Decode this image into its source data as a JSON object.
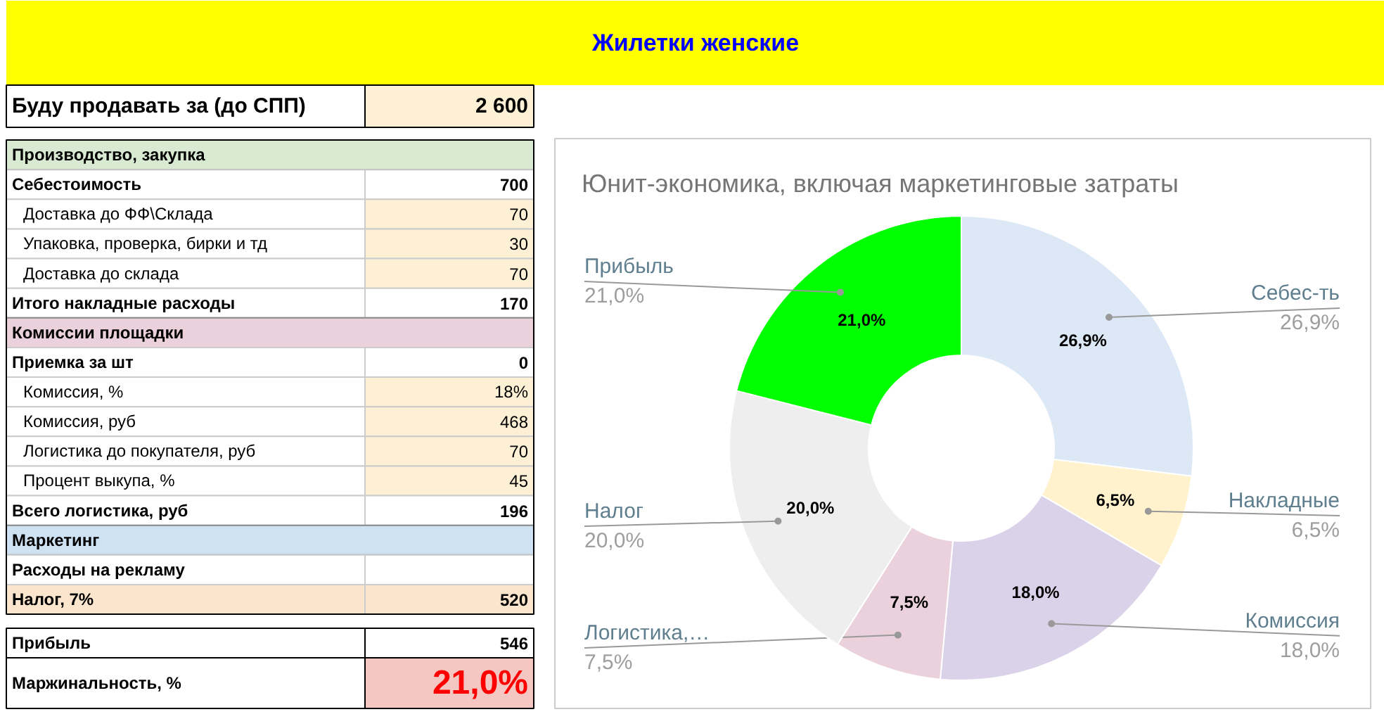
{
  "chart_data": [
    {
      "type": "other",
      "title": "Жилетки женские",
      "annotations": [
        "Буду продавать за (до СПП)",
        "2 600",
        "Производство, закупка",
        null,
        "Себестоимость",
        "700",
        "Доставка до ФФ\\Склада",
        "70",
        "Упаковка, проверка, бирки и тд",
        "30",
        "Доставка до склада",
        "70",
        "Итого накладные расходы",
        "170",
        "Комиссии площадки",
        null,
        "Приемка за шт",
        "0",
        "Комиссия, %",
        "18%",
        "Комиссия, руб",
        "468",
        "Логистика до покупателя, руб",
        "70",
        "Процент выкупа, %",
        "45",
        "Всего логистика, руб",
        "196",
        "Маркетинг",
        null,
        "Расходы на рекламу",
        null,
        "Налог, 7%",
        "520",
        "Прибыль",
        "546",
        "Маржинальность, %",
        "21,0%"
      ]
    },
    {
      "type": "donut",
      "title": "Юнит-экономика, включая маркетинговые затраты",
      "data_labels": true,
      "categories": [
        "Себес-ть",
        "Накладные",
        "Комиссия",
        "Логистика,…",
        "Налог",
        "Прибыль"
      ],
      "values": [
        26.9,
        6.5,
        18.0,
        7.5,
        20.0,
        21.0
      ],
      "value_labels": [
        "26,9%",
        "6,5%",
        "18,0%",
        "7,5%",
        "20,0%",
        "21,0%"
      ],
      "colors": [
        "#dce8f6",
        "#fff2cc",
        "#d9d2e9",
        "#ead1dc",
        "#eeeeee",
        "#00ff00"
      ]
    }
  ]
}
